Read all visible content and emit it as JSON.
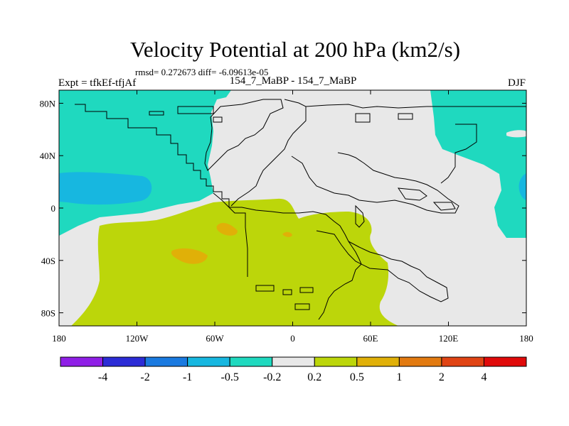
{
  "title": "Velocity Potential at 200 hPa (km2/s)",
  "stats": "rmsd= 0.272673 diff= -6.09613e-05",
  "left_label": "Expt = tfkEf-tfjAf",
  "center_label": "154_7_MaBP - 154_7_MaBP",
  "right_label": "DJF",
  "map": {
    "lon_range": [
      -180,
      180
    ],
    "lat_range": [
      -90,
      90
    ],
    "x_ticks": [
      "180",
      "120W",
      "60W",
      "0",
      "60E",
      "120E",
      "180"
    ],
    "y_ticks": [
      "80N",
      "40N",
      "0",
      "40S",
      "80S"
    ]
  },
  "colorbar": {
    "colors": [
      "#8f1fe6",
      "#2c2cd6",
      "#1a7ae0",
      "#17b7e0",
      "#1fd9bf",
      "#e8e8e8",
      "#bcd60a",
      "#e0b008",
      "#e27a10",
      "#e04414",
      "#e00a0a"
    ],
    "labels": [
      "-4",
      "-2",
      "-1",
      "-0.5",
      "-0.2",
      "0.2",
      "0.5",
      "1",
      "2",
      "4"
    ]
  }
}
